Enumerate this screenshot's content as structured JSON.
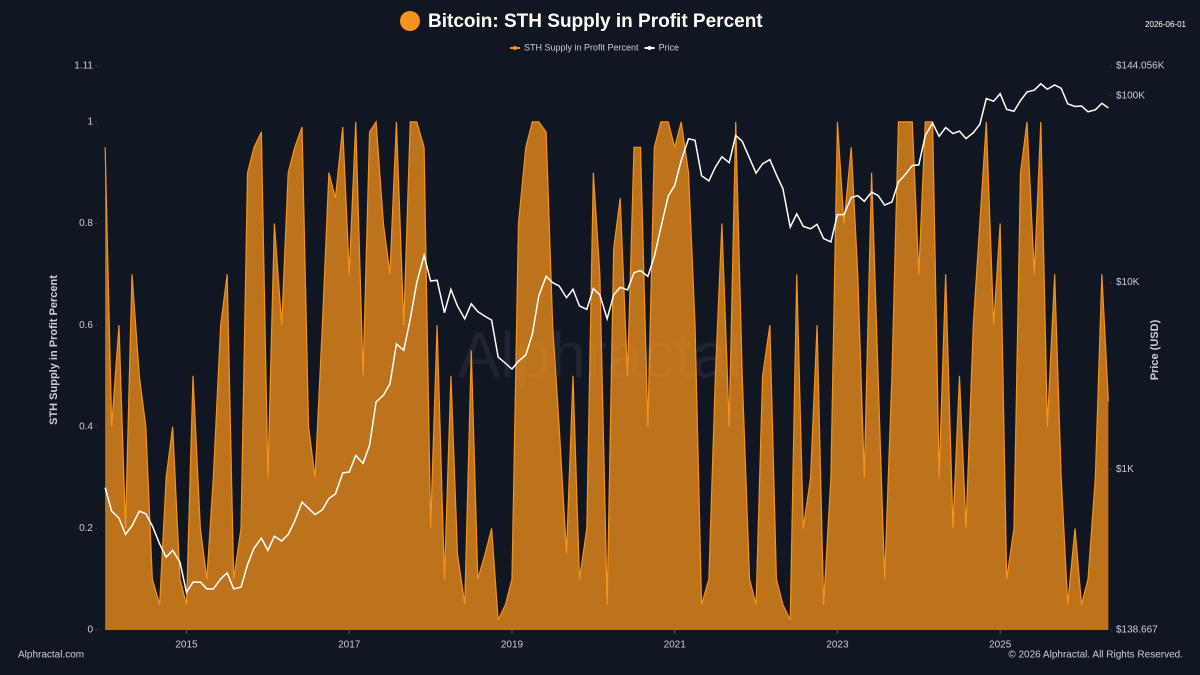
{
  "chart_data": {
    "type": "area-line",
    "title": "Bitcoin: STH Supply in Profit Percent",
    "date": "2026-06-01",
    "ylabel": "STH Supply in Profit Percent",
    "y2label": "Price (USD)",
    "watermark": "Alphractal",
    "footer_left": "Alphractal.com",
    "footer_right": "© 2026 Alphractal. All Rights Reserved.",
    "grid": false,
    "legend": "top",
    "y2log": true,
    "xlim": [
      2013.9,
      2026.35
    ],
    "xticks": [
      2015,
      2017,
      2019,
      2021,
      2023,
      2025
    ],
    "ylim": [
      0,
      1.11
    ],
    "yticks": [
      0,
      0.2,
      0.4,
      0.6,
      0.8,
      1,
      1.11
    ],
    "y2lim": [
      138.667,
      144056
    ],
    "y2ticks": [
      {
        "value": 138.667,
        "label": "$138.667"
      },
      {
        "value": 1000,
        "label": "$1K"
      },
      {
        "value": 10000,
        "label": "$10K"
      },
      {
        "value": 100000,
        "label": "$100K"
      },
      {
        "value": 144056,
        "label": "$144.056K"
      }
    ],
    "x": [
      2014.0,
      2014.08,
      2014.17,
      2014.25,
      2014.33,
      2014.42,
      2014.5,
      2014.58,
      2014.67,
      2014.75,
      2014.83,
      2014.92,
      2015.0,
      2015.08,
      2015.17,
      2015.25,
      2015.33,
      2015.42,
      2015.5,
      2015.58,
      2015.67,
      2015.75,
      2015.83,
      2015.92,
      2016.0,
      2016.08,
      2016.17,
      2016.25,
      2016.33,
      2016.42,
      2016.5,
      2016.58,
      2016.67,
      2016.75,
      2016.83,
      2016.92,
      2017.0,
      2017.08,
      2017.17,
      2017.25,
      2017.33,
      2017.42,
      2017.5,
      2017.58,
      2017.67,
      2017.75,
      2017.83,
      2017.92,
      2018.0,
      2018.08,
      2018.17,
      2018.25,
      2018.33,
      2018.42,
      2018.5,
      2018.58,
      2018.67,
      2018.75,
      2018.83,
      2018.92,
      2019.0,
      2019.08,
      2019.17,
      2019.25,
      2019.33,
      2019.42,
      2019.5,
      2019.58,
      2019.67,
      2019.75,
      2019.83,
      2019.92,
      2020.0,
      2020.08,
      2020.17,
      2020.25,
      2020.33,
      2020.42,
      2020.5,
      2020.58,
      2020.67,
      2020.75,
      2020.83,
      2020.92,
      2021.0,
      2021.08,
      2021.17,
      2021.25,
      2021.33,
      2021.42,
      2021.5,
      2021.58,
      2021.67,
      2021.75,
      2021.83,
      2021.92,
      2022.0,
      2022.08,
      2022.17,
      2022.25,
      2022.33,
      2022.42,
      2022.5,
      2022.58,
      2022.67,
      2022.75,
      2022.83,
      2022.92,
      2023.0,
      2023.08,
      2023.17,
      2023.25,
      2023.33,
      2023.42,
      2023.5,
      2023.58,
      2023.67,
      2023.75,
      2023.83,
      2023.92,
      2024.0,
      2024.08,
      2024.17,
      2024.25,
      2024.33,
      2024.42,
      2024.5,
      2024.58,
      2024.67,
      2024.75,
      2024.83,
      2024.92,
      2025.0,
      2025.08,
      2025.17,
      2025.25,
      2025.33,
      2025.42,
      2025.5,
      2025.58,
      2025.67,
      2025.75,
      2025.83,
      2025.92,
      2026.0,
      2026.08,
      2026.17,
      2026.25,
      2026.33
    ],
    "series": [
      {
        "name": "STH Supply in Profit Percent",
        "color": "#f7931a",
        "axis": "y",
        "values": [
          0.95,
          0.4,
          0.6,
          0.2,
          0.7,
          0.5,
          0.4,
          0.1,
          0.05,
          0.3,
          0.4,
          0.1,
          0.05,
          0.5,
          0.2,
          0.1,
          0.3,
          0.6,
          0.7,
          0.1,
          0.2,
          0.9,
          0.95,
          0.98,
          0.3,
          0.8,
          0.6,
          0.9,
          0.95,
          0.99,
          0.4,
          0.3,
          0.6,
          0.9,
          0.85,
          0.99,
          0.7,
          1.0,
          0.5,
          0.98,
          1.0,
          0.8,
          0.7,
          1.0,
          0.6,
          1.0,
          1.0,
          0.95,
          0.2,
          0.6,
          0.1,
          0.5,
          0.15,
          0.05,
          0.55,
          0.1,
          0.15,
          0.2,
          0.02,
          0.05,
          0.1,
          0.8,
          0.95,
          1.0,
          1.0,
          0.98,
          0.6,
          0.4,
          0.15,
          0.5,
          0.1,
          0.2,
          0.9,
          0.7,
          0.05,
          0.75,
          0.85,
          0.5,
          0.95,
          0.95,
          0.4,
          0.95,
          1.0,
          1.0,
          0.95,
          1.0,
          0.9,
          0.6,
          0.05,
          0.1,
          0.5,
          0.8,
          0.4,
          1.0,
          0.5,
          0.1,
          0.05,
          0.5,
          0.6,
          0.1,
          0.05,
          0.02,
          0.7,
          0.2,
          0.3,
          0.6,
          0.05,
          0.3,
          1.0,
          0.8,
          0.95,
          0.7,
          0.3,
          0.9,
          0.5,
          0.1,
          0.5,
          1.0,
          1.0,
          1.0,
          0.7,
          1.0,
          1.0,
          0.3,
          0.7,
          0.2,
          0.5,
          0.2,
          0.6,
          0.8,
          1.0,
          0.6,
          0.8,
          0.1,
          0.2,
          0.9,
          1.0,
          0.7,
          1.0,
          0.4,
          0.7,
          0.3,
          0.05,
          0.2,
          0.05,
          0.1,
          0.3,
          0.7,
          0.45
        ]
      },
      {
        "name": "Price",
        "color": "#ffffff",
        "axis": "y2",
        "values": [
          800,
          600,
          550,
          450,
          500,
          600,
          580,
          500,
          400,
          340,
          370,
          320,
          220,
          250,
          250,
          230,
          230,
          260,
          280,
          230,
          235,
          310,
          380,
          430,
          370,
          440,
          415,
          450,
          530,
          670,
          620,
          575,
          610,
          700,
          740,
          960,
          970,
          1190,
          1080,
          1350,
          2300,
          2500,
          2870,
          4700,
          4340,
          6400,
          10000,
          14000,
          10200,
          10300,
          6900,
          9200,
          7500,
          6400,
          7700,
          7000,
          6600,
          6300,
          4000,
          3700,
          3450,
          3800,
          4100,
          5300,
          8500,
          10800,
          10000,
          9600,
          8300,
          9200,
          7500,
          7200,
          9300,
          8600,
          6400,
          8600,
          9450,
          9140,
          11300,
          11600,
          10800,
          13800,
          19700,
          29000,
          33100,
          45000,
          58800,
          57700,
          37300,
          35000,
          41500,
          47100,
          43800,
          61300,
          57000,
          46300,
          38500,
          43200,
          45500,
          37700,
          31800,
          19800,
          23300,
          20000,
          19400,
          20500,
          17200,
          16500,
          23100,
          23100,
          28500,
          29200,
          27200,
          30500,
          29200,
          26000,
          27000,
          34500,
          37700,
          42300,
          42600,
          61200,
          71300,
          60600,
          67500,
          62700,
          64600,
          58900,
          63300,
          70200,
          96400,
          93400,
          102400,
          84400,
          82500,
          94200,
          104600,
          107100,
          115700,
          108200,
          114000,
          109500,
          90400,
          87500,
          88000,
          82000,
          84000,
          91000,
          86000
        ]
      }
    ]
  }
}
